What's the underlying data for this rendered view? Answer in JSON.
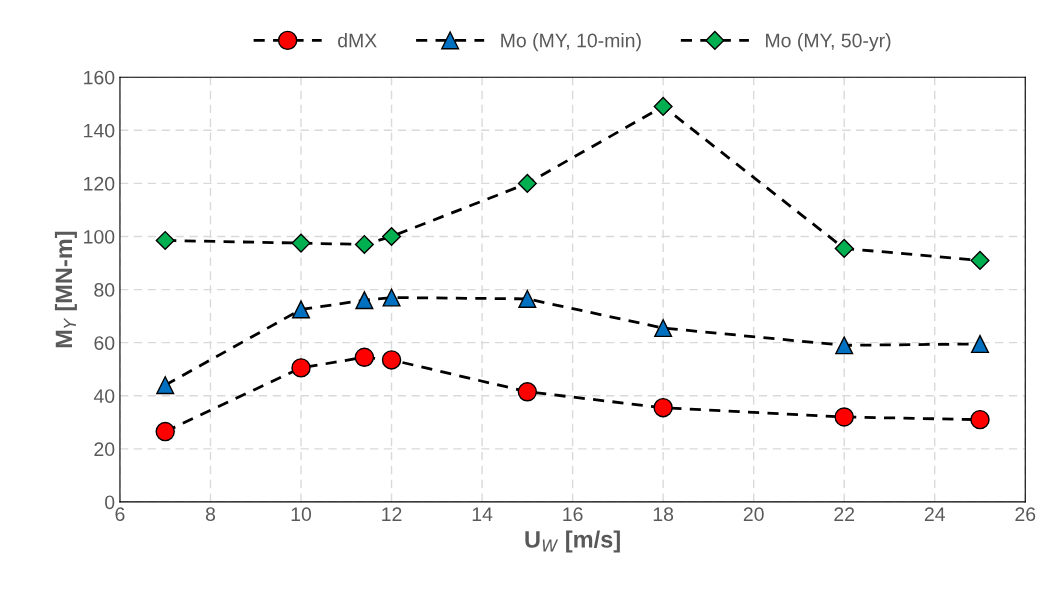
{
  "chart_data": {
    "type": "line",
    "xlabel": "U$_{W}$ [m/s]",
    "ylabel": "M$_{Y}$ [MN-m]",
    "x": [
      7,
      10,
      11.4,
      12,
      15,
      18,
      22,
      25
    ],
    "series": [
      {
        "name": "dMX",
        "color": "#ff0000",
        "marker": "circle",
        "values": [
          26.5,
          50.5,
          54.5,
          53.5,
          41.5,
          35.5,
          32,
          31
        ]
      },
      {
        "name": "Mo (MY, 10-min)",
        "color": "#0070c0",
        "marker": "triangle",
        "values": [
          44,
          72.5,
          76,
          77,
          76.5,
          65.5,
          59,
          59.5
        ]
      },
      {
        "name": "Mo (MY, 50-yr)",
        "color": "#00b050",
        "marker": "diamond",
        "values": [
          98.5,
          97.5,
          97,
          100,
          120,
          149,
          95.5,
          91
        ]
      }
    ],
    "line_style": "dashed",
    "grid": true,
    "legend": "top",
    "xlim": [
      6,
      26
    ],
    "xticks": [
      6,
      8,
      10,
      12,
      14,
      16,
      18,
      20,
      22,
      24,
      26
    ],
    "ylim": [
      0,
      160
    ],
    "yticks": [
      0,
      20,
      40,
      60,
      80,
      100,
      120,
      140,
      160
    ]
  }
}
